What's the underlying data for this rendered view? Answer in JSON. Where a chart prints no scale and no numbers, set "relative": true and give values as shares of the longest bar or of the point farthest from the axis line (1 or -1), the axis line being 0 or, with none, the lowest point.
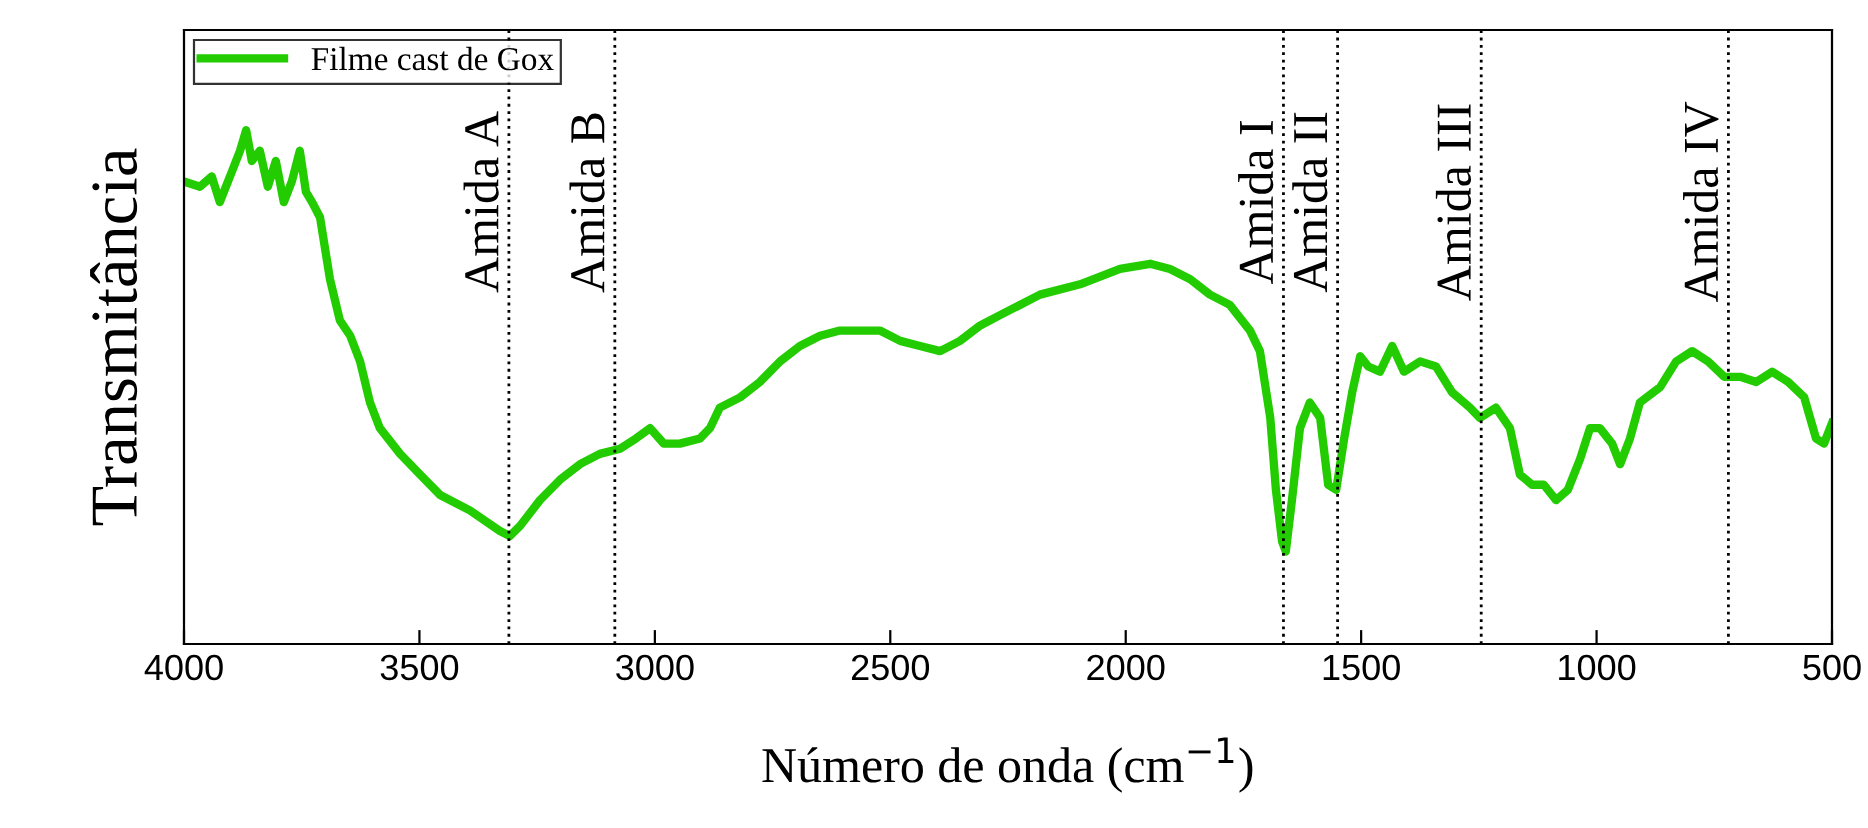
{
  "chart_data": {
    "type": "line",
    "relative": true,
    "xlabel": "Número de onda (cm$^{−1}$)",
    "ylabel": "Transmitância",
    "xlim": [
      4000,
      500
    ],
    "xticks": [
      4000,
      3500,
      3000,
      2500,
      2000,
      1500,
      1000,
      500
    ],
    "legend": "top left",
    "grid": false,
    "tick_labels": "x",
    "series": [
      {
        "name": "Filme cast de Gox",
        "color": "#22cc00",
        "x": [
          4000,
          3966,
          3941,
          3924,
          3898,
          3881,
          3868,
          3856,
          3839,
          3822,
          3805,
          3788,
          3771,
          3754,
          3741,
          3728,
          3711,
          3690,
          3669,
          3647,
          3626,
          3605,
          3584,
          3541,
          3499,
          3456,
          3393,
          3329,
          3308,
          3286,
          3244,
          3201,
          3159,
          3117,
          3074,
          3040,
          3010,
          2981,
          2947,
          2904,
          2883,
          2862,
          2819,
          2777,
          2734,
          2692,
          2649,
          2607,
          2564,
          2522,
          2479,
          2437,
          2394,
          2352,
          2309,
          2267,
          2182,
          2097,
          2012,
          1948,
          1906,
          1863,
          1821,
          1779,
          1736,
          1715,
          1693,
          1681,
          1668,
          1660,
          1647,
          1630,
          1609,
          1587,
          1570,
          1553,
          1536,
          1519,
          1502,
          1485,
          1460,
          1434,
          1409,
          1375,
          1341,
          1307,
          1269,
          1248,
          1214,
          1184,
          1163,
          1137,
          1112,
          1086,
          1061,
          1035,
          1014,
          993,
          967,
          950,
          929,
          908,
          865,
          831,
          797,
          763,
          729,
          695,
          661,
          627,
          593,
          559,
          534,
          517,
          500
        ],
        "values": [
          0.9,
          0.89,
          0.91,
          0.86,
          0.92,
          0.96,
          1.0,
          0.94,
          0.96,
          0.89,
          0.94,
          0.86,
          0.9,
          0.96,
          0.88,
          0.86,
          0.83,
          0.71,
          0.63,
          0.6,
          0.55,
          0.47,
          0.42,
          0.37,
          0.33,
          0.29,
          0.26,
          0.22,
          0.21,
          0.23,
          0.28,
          0.32,
          0.35,
          0.37,
          0.38,
          0.4,
          0.42,
          0.39,
          0.39,
          0.4,
          0.42,
          0.46,
          0.48,
          0.51,
          0.55,
          0.58,
          0.6,
          0.61,
          0.61,
          0.61,
          0.59,
          0.58,
          0.57,
          0.59,
          0.62,
          0.64,
          0.68,
          0.7,
          0.73,
          0.74,
          0.73,
          0.71,
          0.68,
          0.66,
          0.61,
          0.57,
          0.44,
          0.3,
          0.2,
          0.18,
          0.28,
          0.42,
          0.47,
          0.44,
          0.31,
          0.3,
          0.4,
          0.49,
          0.56,
          0.54,
          0.53,
          0.58,
          0.53,
          0.55,
          0.54,
          0.49,
          0.46,
          0.44,
          0.46,
          0.42,
          0.33,
          0.31,
          0.31,
          0.28,
          0.3,
          0.36,
          0.42,
          0.42,
          0.39,
          0.35,
          0.4,
          0.47,
          0.5,
          0.55,
          0.57,
          0.55,
          0.52,
          0.52,
          0.51,
          0.53,
          0.51,
          0.48,
          0.4,
          0.39,
          0.43
        ]
      }
    ],
    "ref_lines": [
      {
        "axis": "x",
        "value": 3310,
        "label": "Amida A",
        "line_style": "dotted",
        "color": "#000000"
      },
      {
        "axis": "x",
        "value": 3085,
        "label": "Amida B",
        "line_style": "dotted",
        "color": "#000000"
      },
      {
        "axis": "x",
        "value": 1665,
        "label": "Amida I",
        "line_style": "dotted",
        "color": "#000000"
      },
      {
        "axis": "x",
        "value": 1550,
        "label": "Amida II",
        "line_style": "dotted",
        "color": "#000000"
      },
      {
        "axis": "x",
        "value": 1245,
        "label": "Amida III",
        "line_style": "dotted",
        "color": "#000000"
      },
      {
        "axis": "x",
        "value": 720,
        "label": "Amida IV",
        "line_style": "dotted",
        "color": "#000000"
      }
    ]
  }
}
